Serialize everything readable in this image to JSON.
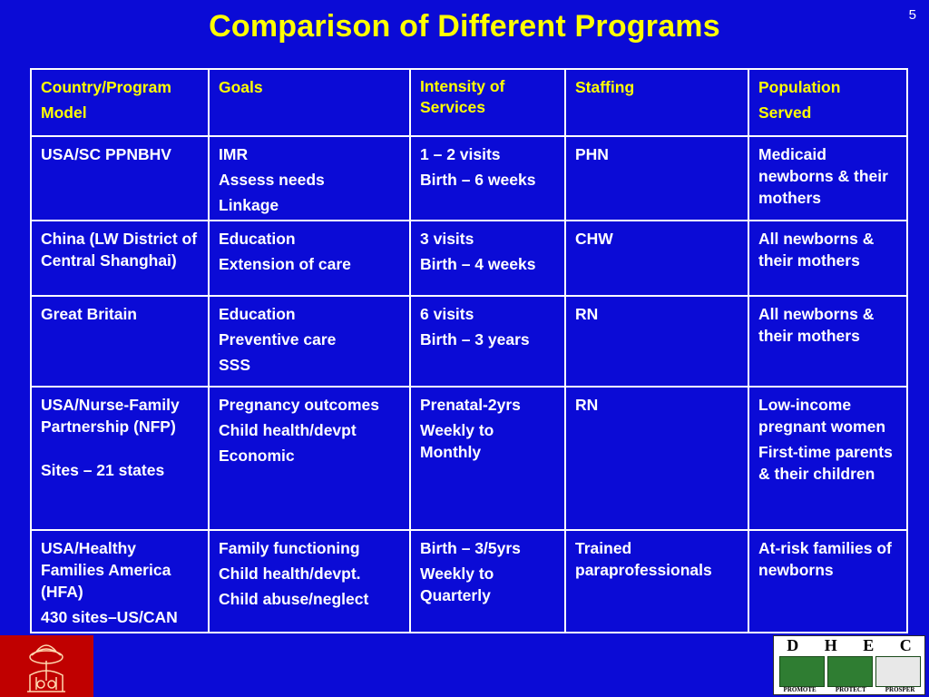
{
  "slide": {
    "number": "5",
    "title": "Comparison of Different Programs"
  },
  "table": {
    "headers": [
      [
        "Country/Program",
        "Model"
      ],
      [
        "Goals"
      ],
      [
        "Intensity of Services"
      ],
      [
        "Staffing"
      ],
      [
        "Population",
        "Served"
      ]
    ],
    "rows": [
      {
        "program": [
          "USA/SC PPNBHV"
        ],
        "goals": [
          "IMR",
          "Assess needs",
          "Linkage"
        ],
        "intensity": [
          "1 – 2  visits",
          "Birth – 6 weeks"
        ],
        "staffing": [
          "PHN"
        ],
        "population": [
          "Medicaid newborns & their mothers"
        ]
      },
      {
        "program": [
          "China (LW District of Central Shanghai)"
        ],
        "goals": [
          "Education",
          "Extension of care"
        ],
        "intensity": [
          "3 visits",
          "Birth – 4 weeks"
        ],
        "staffing": [
          "CHW"
        ],
        "population": [
          "All newborns & their mothers"
        ]
      },
      {
        "program": [
          "Great Britain"
        ],
        "goals": [
          "Education",
          "Preventive care",
          "SSS"
        ],
        "intensity": [
          "6 visits",
          "Birth – 3 years"
        ],
        "staffing": [
          "RN"
        ],
        "population": [
          "All newborns & their mothers"
        ]
      },
      {
        "program": [
          "USA/Nurse-Family Partnership (NFP)",
          "Sites – 21 states"
        ],
        "goals": [
          "Pregnancy outcomes",
          "Child health/devpt",
          "Economic"
        ],
        "intensity": [
          "Prenatal-2yrs",
          "Weekly to Monthly"
        ],
        "staffing": [
          "RN"
        ],
        "population": [
          "Low-income pregnant women",
          "First-time parents & their children"
        ]
      },
      {
        "program": [
          "USA/Healthy Families America (HFA)",
          "430 sites–US/CAN"
        ],
        "goals": [
          "Family functioning",
          "Child health/devpt.",
          "Child abuse/neglect"
        ],
        "intensity": [
          "Birth – 3/5yrs",
          "Weekly to Quarterly"
        ],
        "staffing": [
          "Trained paraprofessionals"
        ],
        "population": [
          "At-risk families of newborns"
        ]
      }
    ]
  },
  "logos": {
    "left": "sc-state-seal-icon",
    "right": {
      "letters": [
        "D",
        "H",
        "E",
        "C"
      ],
      "motto": [
        "PROMOTE",
        "PROTECT",
        "PROSPER"
      ]
    }
  },
  "colors": {
    "background": "#0b0bd6",
    "title": "#ffff00",
    "header_text": "#ffff00",
    "body_text": "#ffffff",
    "left_logo_bg": "#c00000"
  }
}
